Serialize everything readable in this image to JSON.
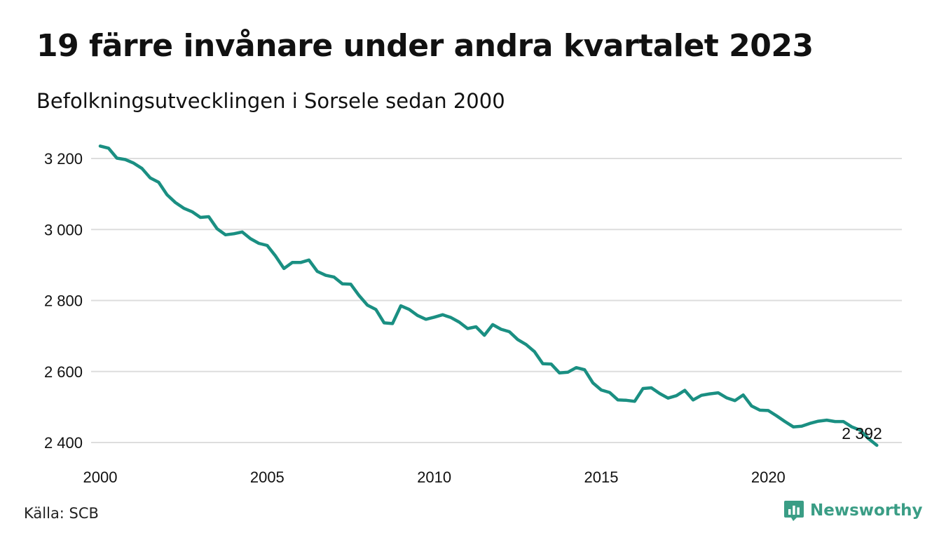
{
  "title": "19 färre invånare under andra kvartalet 2023",
  "subtitle": "Befolkningsutvecklingen i Sorsele sedan 2000",
  "source": "Källa: SCB",
  "brand": {
    "name": "Newsworthy",
    "icon": "chart-bubble-icon"
  },
  "colors": {
    "line": "#1a8f82",
    "grid": "#dddddd",
    "brand": "#3a9d85"
  },
  "chart_data": {
    "type": "line",
    "grid": true,
    "xlim": [
      2000,
      2024
    ],
    "ylim": [
      2380,
      3240
    ],
    "x_ticks": [
      2000,
      2005,
      2010,
      2015,
      2020
    ],
    "x_tick_labels": [
      "2000",
      "2005",
      "2010",
      "2015",
      "2020"
    ],
    "y_ticks": [
      2400,
      2600,
      2800,
      3000,
      3200
    ],
    "y_tick_labels": [
      "2 400",
      "2 600",
      "2 800",
      "3 000",
      "3 200"
    ],
    "end_label": "2 392",
    "series": [
      {
        "x": [
          2000.0,
          2000.25,
          2000.5,
          2000.75,
          2001.0,
          2001.25,
          2001.5,
          2001.75,
          2002.0,
          2002.25,
          2002.5,
          2002.75,
          2003.0,
          2003.25,
          2003.5,
          2003.75,
          2004.0,
          2004.25,
          2004.5,
          2004.75,
          2005.0,
          2005.25,
          2005.5,
          2005.75,
          2006.0,
          2006.25,
          2006.5,
          2006.75,
          2007.0,
          2007.25,
          2007.5,
          2007.75,
          2008.0,
          2008.25,
          2008.5,
          2008.75,
          2009.0,
          2009.25,
          2009.5,
          2009.75,
          2010.0,
          2010.25,
          2010.5,
          2010.75,
          2011.0,
          2011.25,
          2011.5,
          2011.75,
          2012.0,
          2012.25,
          2012.5,
          2012.75,
          2013.0,
          2013.25,
          2013.5,
          2013.75,
          2014.0,
          2014.25,
          2014.5,
          2014.75,
          2015.0,
          2015.25,
          2015.5,
          2015.75,
          2016.0,
          2016.25,
          2016.5,
          2016.75,
          2017.0,
          2017.25,
          2017.5,
          2017.75,
          2018.0,
          2018.25,
          2018.5,
          2018.75,
          2019.0,
          2019.25,
          2019.5,
          2019.75,
          2020.0,
          2020.25,
          2020.5,
          2020.75,
          2021.0,
          2021.25,
          2021.5,
          2021.75,
          2022.0,
          2022.25,
          2022.5,
          2022.75,
          2023.0,
          2023.25
        ],
        "values": [
          3235,
          3229,
          3201,
          3197,
          3187,
          3172,
          3145,
          3133,
          3098,
          3076,
          3060,
          3050,
          3034,
          3036,
          3002,
          2985,
          2988,
          2993,
          2974,
          2961,
          2955,
          2925,
          2890,
          2907,
          2907,
          2914,
          2882,
          2871,
          2866,
          2847,
          2846,
          2814,
          2787,
          2775,
          2737,
          2735,
          2785,
          2775,
          2758,
          2747,
          2753,
          2760,
          2752,
          2739,
          2721,
          2726,
          2702,
          2732,
          2719,
          2712,
          2690,
          2676,
          2656,
          2622,
          2621,
          2596,
          2598,
          2611,
          2605,
          2568,
          2548,
          2541,
          2520,
          2519,
          2516,
          2552,
          2554,
          2538,
          2525,
          2532,
          2547,
          2520,
          2533,
          2537,
          2540,
          2526,
          2518,
          2534,
          2503,
          2491,
          2490,
          2475,
          2459,
          2444,
          2446,
          2454,
          2460,
          2463,
          2459,
          2459,
          2444,
          2435,
          2411,
          2392
        ]
      }
    ]
  }
}
